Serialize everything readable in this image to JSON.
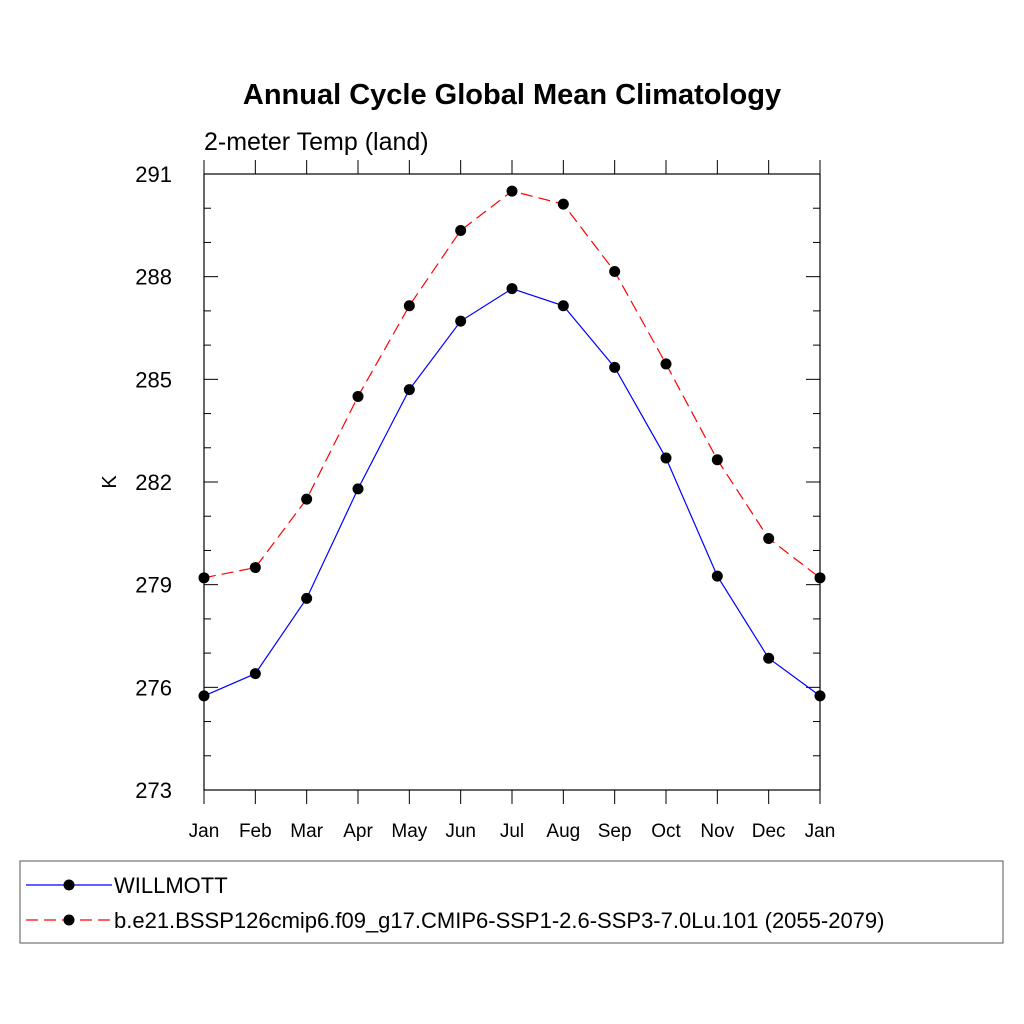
{
  "chart_data": {
    "type": "line",
    "title": "Annual Cycle Global Mean Climatology",
    "subtitle": "2-meter Temp (land)",
    "xlabel": "",
    "ylabel": "K",
    "categories": [
      "Jan",
      "Feb",
      "Mar",
      "Apr",
      "May",
      "Jun",
      "Jul",
      "Aug",
      "Sep",
      "Oct",
      "Nov",
      "Dec",
      "Jan"
    ],
    "ylim": [
      273,
      291
    ],
    "yticks": [
      "273",
      "276",
      "279",
      "282",
      "285",
      "288",
      "291"
    ],
    "grid": false,
    "legend_position": "bottom",
    "series": [
      {
        "name": "WILLMOTT",
        "color": "#0000ff",
        "line_style": "solid",
        "marker": "filled-circle",
        "values": [
          275.75,
          276.4,
          278.6,
          281.8,
          284.7,
          286.7,
          287.65,
          287.15,
          285.35,
          282.7,
          279.25,
          276.85,
          275.75
        ]
      },
      {
        "name": "b.e21.BSSP126cmip6.f09_g17.CMIP6-SSP1-2.6-SSP3-7.0Lu.101 (2055-2079)",
        "color": "#ff0000",
        "line_style": "dashed",
        "marker": "filled-circle",
        "values": [
          279.2,
          279.5,
          281.5,
          284.5,
          287.15,
          289.35,
          290.5,
          290.12,
          288.15,
          285.45,
          282.65,
          280.35,
          279.2
        ]
      }
    ],
    "marker_color": "#000000"
  }
}
